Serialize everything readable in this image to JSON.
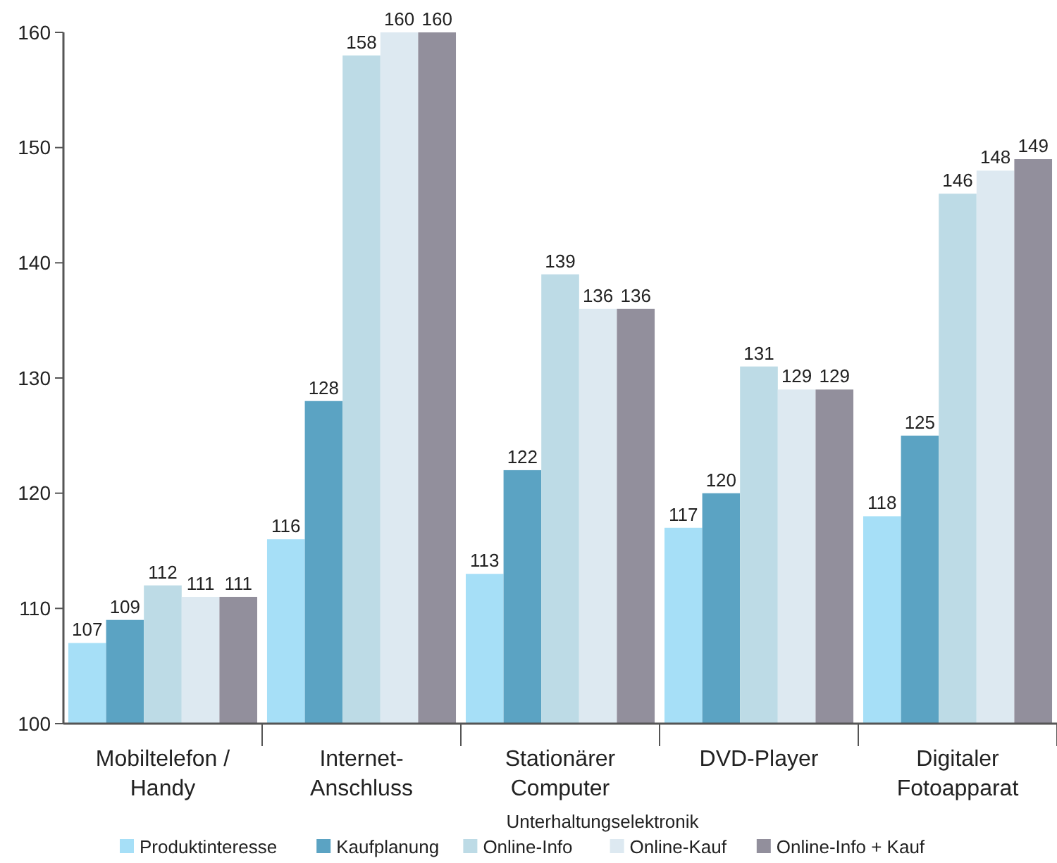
{
  "chart_data": {
    "type": "bar",
    "xlabel": "Unterhaltungselektronik",
    "categories": [
      "Mobiltelefon /\nHandy",
      "Internet-\nAnschluss",
      "Stationärer\nComputer",
      "DVD-Player",
      "Digitaler\nFotoapparat"
    ],
    "series": [
      {
        "name": "Produktinteresse",
        "color": "#a6dff7",
        "values": [
          107,
          116,
          113,
          117,
          118
        ]
      },
      {
        "name": "Kaufplanung",
        "color": "#5ba3c3",
        "values": [
          109,
          128,
          122,
          120,
          125
        ]
      },
      {
        "name": "Online-Info",
        "color": "#bddbe6",
        "values": [
          112,
          158,
          139,
          131,
          146
        ]
      },
      {
        "name": "Online-Kauf",
        "color": "#dde9f1",
        "values": [
          111,
          160,
          136,
          129,
          148
        ]
      },
      {
        "name": "Online-Info + Kauf",
        "color": "#928f9c",
        "values": [
          111,
          160,
          136,
          129,
          149
        ]
      }
    ],
    "ylim": [
      100,
      160
    ],
    "yticks": [
      100,
      110,
      120,
      130,
      140,
      150,
      160
    ],
    "data_labels": true,
    "legend": "bottom",
    "grid": false
  }
}
